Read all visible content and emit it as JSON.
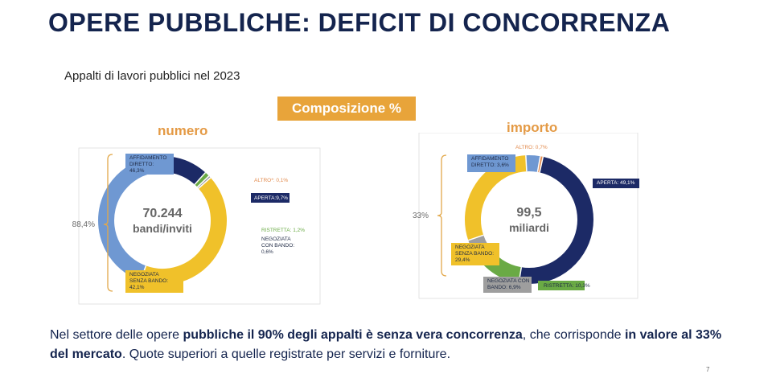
{
  "slide": {
    "title": "OPERE PUBBLICHE: DEFICIT DI CONCORRENZA",
    "subtitle": "Appalti di lavori pubblici nel 2023",
    "badge": "Composizione %",
    "page_number": "7",
    "footer": {
      "p1": "Nel settore delle opere ",
      "b1": "pubbliche il 90% degli appalti è senza vera concorrenza",
      "p2": ", che corrisponde ",
      "b2": "in valore al 33% del mercato",
      "p3": ". Quote superiori a quelle registrate per servizi e forniture."
    }
  },
  "chart_data": [
    {
      "type": "pie",
      "heading": "numero",
      "center_line1": "70.244",
      "center_line2": "bandi/inviti",
      "bracket_label": "88,4%",
      "colors": {
        "affidamento": "#6f98d2",
        "altro": "#e28a4c",
        "aperta": "#1c2a66",
        "ristretta": "#6aaa45",
        "negoziata_bando": "#9e9e9e",
        "negoziata_senza": "#f0c12a"
      },
      "slices": [
        {
          "key": "affidamento",
          "label": "AFFIDAMENTO DIRETTO: 46,3%",
          "value": 46.3
        },
        {
          "key": "altro",
          "label": "ALTRO*: 0,1%",
          "value": 0.1
        },
        {
          "key": "aperta",
          "label": "APERTA:9,7%",
          "value": 9.7
        },
        {
          "key": "ristretta",
          "label": "RISTRETTA: 1,2%",
          "value": 1.2
        },
        {
          "key": "negoziata_bando",
          "label": "NEGOZIATA CON BANDO: 0,6%",
          "value": 0.6
        },
        {
          "key": "negoziata_senza",
          "label": "NEGOZIATA SENZA BANDO: 42,1%",
          "value": 42.1
        }
      ],
      "labels": {
        "affidamento": [
          "AFFIDAMENTO",
          "DIRETTO:",
          "46,3%"
        ],
        "altro": [
          "ALTRO*: 0,1%"
        ],
        "aperta": [
          "APERTA:9,7%"
        ],
        "ristretta": [
          "RISTRETTA: 1,2%"
        ],
        "negoziata_bando": [
          "NEGOZIATA",
          "CON BANDO:",
          "0,6%"
        ],
        "negoziata_senza": [
          "NEGOZIATA",
          "SENZA BANDO:",
          "42,1%"
        ]
      }
    },
    {
      "type": "pie",
      "heading": "importo",
      "center_line1": "99,5",
      "center_line2": "miliardi",
      "bracket_label": "33%",
      "colors": {
        "affidamento": "#6f98d2",
        "altro": "#e28a4c",
        "aperta": "#1c2a66",
        "ristretta": "#6aaa45",
        "negoziata_bando": "#9e9e9e",
        "negoziata_senza": "#f0c12a"
      },
      "slices": [
        {
          "key": "altro",
          "label": "ALTRO: 0,7%",
          "value": 0.7
        },
        {
          "key": "aperta",
          "label": "APERTA: 49,1%",
          "value": 49.1
        },
        {
          "key": "ristretta",
          "label": "RISTRETTA: 10,3%",
          "value": 10.3
        },
        {
          "key": "negoziata_bando",
          "label": "NEGOZIATA CON BANDO: 6,9%",
          "value": 6.9
        },
        {
          "key": "negoziata_senza",
          "label": "NEGOZIATA SENZA BANDO: 29,4%",
          "value": 29.4
        },
        {
          "key": "affidamento",
          "label": "AFFIDAMENTO DIRETTO: 3,6%",
          "value": 3.6
        }
      ],
      "labels": {
        "affidamento": [
          "AFFIDAMENTO",
          "DIRETTO: 3,6%"
        ],
        "altro": [
          "ALTRO: 0,7%"
        ],
        "aperta": [
          "APERTA: 49,1%"
        ],
        "ristretta": [
          "RISTRETTA: 10,3%"
        ],
        "negoziata_bando": [
          "NEGOZIATA CON",
          "BANDO: 6,9%"
        ],
        "negoziata_senza": [
          "NEGOZIATA",
          "SENZA BANDO:",
          "29,4%"
        ]
      }
    }
  ]
}
